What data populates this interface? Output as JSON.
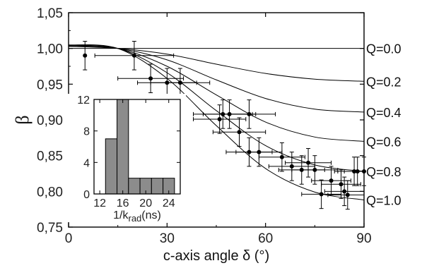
{
  "chart_data": [
    {
      "type": "line",
      "title": "",
      "xlabel": "c-axis angle δ (°)",
      "ylabel": "β",
      "xlim": [
        0,
        90
      ],
      "ylim": [
        0.75,
        1.05
      ],
      "xticks": [
        0,
        30,
        60,
        90
      ],
      "xtick_labels": [
        "0",
        "30",
        "60",
        "90"
      ],
      "yticks": [
        0.75,
        0.8,
        0.85,
        0.9,
        0.95,
        1.0,
        1.05
      ],
      "ytick_labels": [
        "0,75",
        "0,80",
        "0,85",
        "0,90",
        "0,95",
        "1,00",
        "1,05"
      ],
      "grid": false,
      "series": [
        {
          "name": "Q=0.0",
          "x": [
            0,
            90
          ],
          "y": [
            1.0,
            1.0
          ]
        },
        {
          "name": "Q=0.2",
          "x": [
            0,
            15,
            30,
            45,
            60,
            75,
            90
          ],
          "y": [
            1.003,
            1.0,
            0.992,
            0.978,
            0.965,
            0.957,
            0.954
          ]
        },
        {
          "name": "Q=0.4",
          "x": [
            0,
            15,
            30,
            45,
            60,
            75,
            90
          ],
          "y": [
            1.003,
            1.0,
            0.984,
            0.956,
            0.93,
            0.915,
            0.911
          ]
        },
        {
          "name": "Q=0.6",
          "x": [
            0,
            15,
            30,
            45,
            60,
            75,
            90
          ],
          "y": [
            1.004,
            1.0,
            0.975,
            0.935,
            0.897,
            0.876,
            0.87
          ]
        },
        {
          "name": "Q=0.8",
          "x": [
            0,
            15,
            30,
            45,
            60,
            75,
            90
          ],
          "y": [
            1.004,
            1.0,
            0.966,
            0.913,
            0.864,
            0.837,
            0.828
          ]
        },
        {
          "name": "Q=1.0",
          "x": [
            0,
            15,
            30,
            45,
            60,
            75,
            90
          ],
          "y": [
            1.005,
            1.0,
            0.958,
            0.892,
            0.832,
            0.799,
            0.788
          ]
        }
      ],
      "points": [
        {
          "x": 5,
          "y": 0.99,
          "xerr": 0,
          "yerr": 0.02
        },
        {
          "x": 20,
          "y": 0.99,
          "xerr": 12,
          "yerr": 0.02
        },
        {
          "x": 25,
          "y": 0.958,
          "xerr": 10,
          "yerr": 0.02
        },
        {
          "x": 30,
          "y": 0.952,
          "xerr": 9,
          "yerr": 0.02
        },
        {
          "x": 34,
          "y": 0.952,
          "xerr": 9,
          "yerr": 0.02
        },
        {
          "x": 46,
          "y": 0.901,
          "xerr": 8,
          "yerr": 0.02
        },
        {
          "x": 47,
          "y": 0.908,
          "xerr": 9,
          "yerr": 0.02
        },
        {
          "x": 49,
          "y": 0.908,
          "xerr": 8,
          "yerr": 0.02
        },
        {
          "x": 52,
          "y": 0.883,
          "xerr": 8,
          "yerr": 0.02
        },
        {
          "x": 55,
          "y": 0.908,
          "xerr": 8,
          "yerr": 0.02
        },
        {
          "x": 55,
          "y": 0.855,
          "xerr": 7,
          "yerr": 0.02
        },
        {
          "x": 58,
          "y": 0.855,
          "xerr": 7,
          "yerr": 0.02
        },
        {
          "x": 65,
          "y": 0.848,
          "xerr": 7,
          "yerr": 0.02
        },
        {
          "x": 68,
          "y": 0.835,
          "xerr": 7,
          "yerr": 0.02
        },
        {
          "x": 71,
          "y": 0.83,
          "xerr": 7,
          "yerr": 0.02
        },
        {
          "x": 73,
          "y": 0.84,
          "xerr": 7,
          "yerr": 0.02
        },
        {
          "x": 75,
          "y": 0.83,
          "xerr": 7,
          "yerr": 0.02
        },
        {
          "x": 77,
          "y": 0.796,
          "xerr": 6,
          "yerr": 0.02
        },
        {
          "x": 80,
          "y": 0.815,
          "xerr": 6,
          "yerr": 0.02
        },
        {
          "x": 83,
          "y": 0.81,
          "xerr": 6,
          "yerr": 0.02
        },
        {
          "x": 84,
          "y": 0.8,
          "xerr": 6,
          "yerr": 0.02
        },
        {
          "x": 85,
          "y": 0.795,
          "xerr": 6,
          "yerr": 0.02
        },
        {
          "x": 87,
          "y": 0.828,
          "xerr": 6,
          "yerr": 0.02
        },
        {
          "x": 88,
          "y": 0.828,
          "xerr": 6,
          "yerr": 0.02
        },
        {
          "x": 90,
          "y": 0.828,
          "xerr": 6,
          "yerr": 0.02
        }
      ]
    },
    {
      "type": "bar",
      "title": "",
      "xlabel": "1/k_rad(ns)",
      "xlabel_main": "1/k",
      "xlabel_sub": "rad",
      "xlabel_unit": "(ns)",
      "ylabel": "",
      "xlim": [
        11,
        26
      ],
      "ylim": [
        0,
        12
      ],
      "xticks": [
        12,
        16,
        20,
        24
      ],
      "xtick_labels": [
        "12",
        "16",
        "20",
        "24"
      ],
      "yticks": [
        0,
        4,
        8,
        12
      ],
      "ytick_labels": [
        "0",
        "4",
        "8",
        "12"
      ],
      "bin_centers": [
        14,
        16,
        18,
        20,
        22,
        24
      ],
      "bin_width": 2,
      "values": [
        7,
        12,
        2,
        2,
        2,
        2
      ],
      "bar_color": "#8c8c8c"
    }
  ]
}
